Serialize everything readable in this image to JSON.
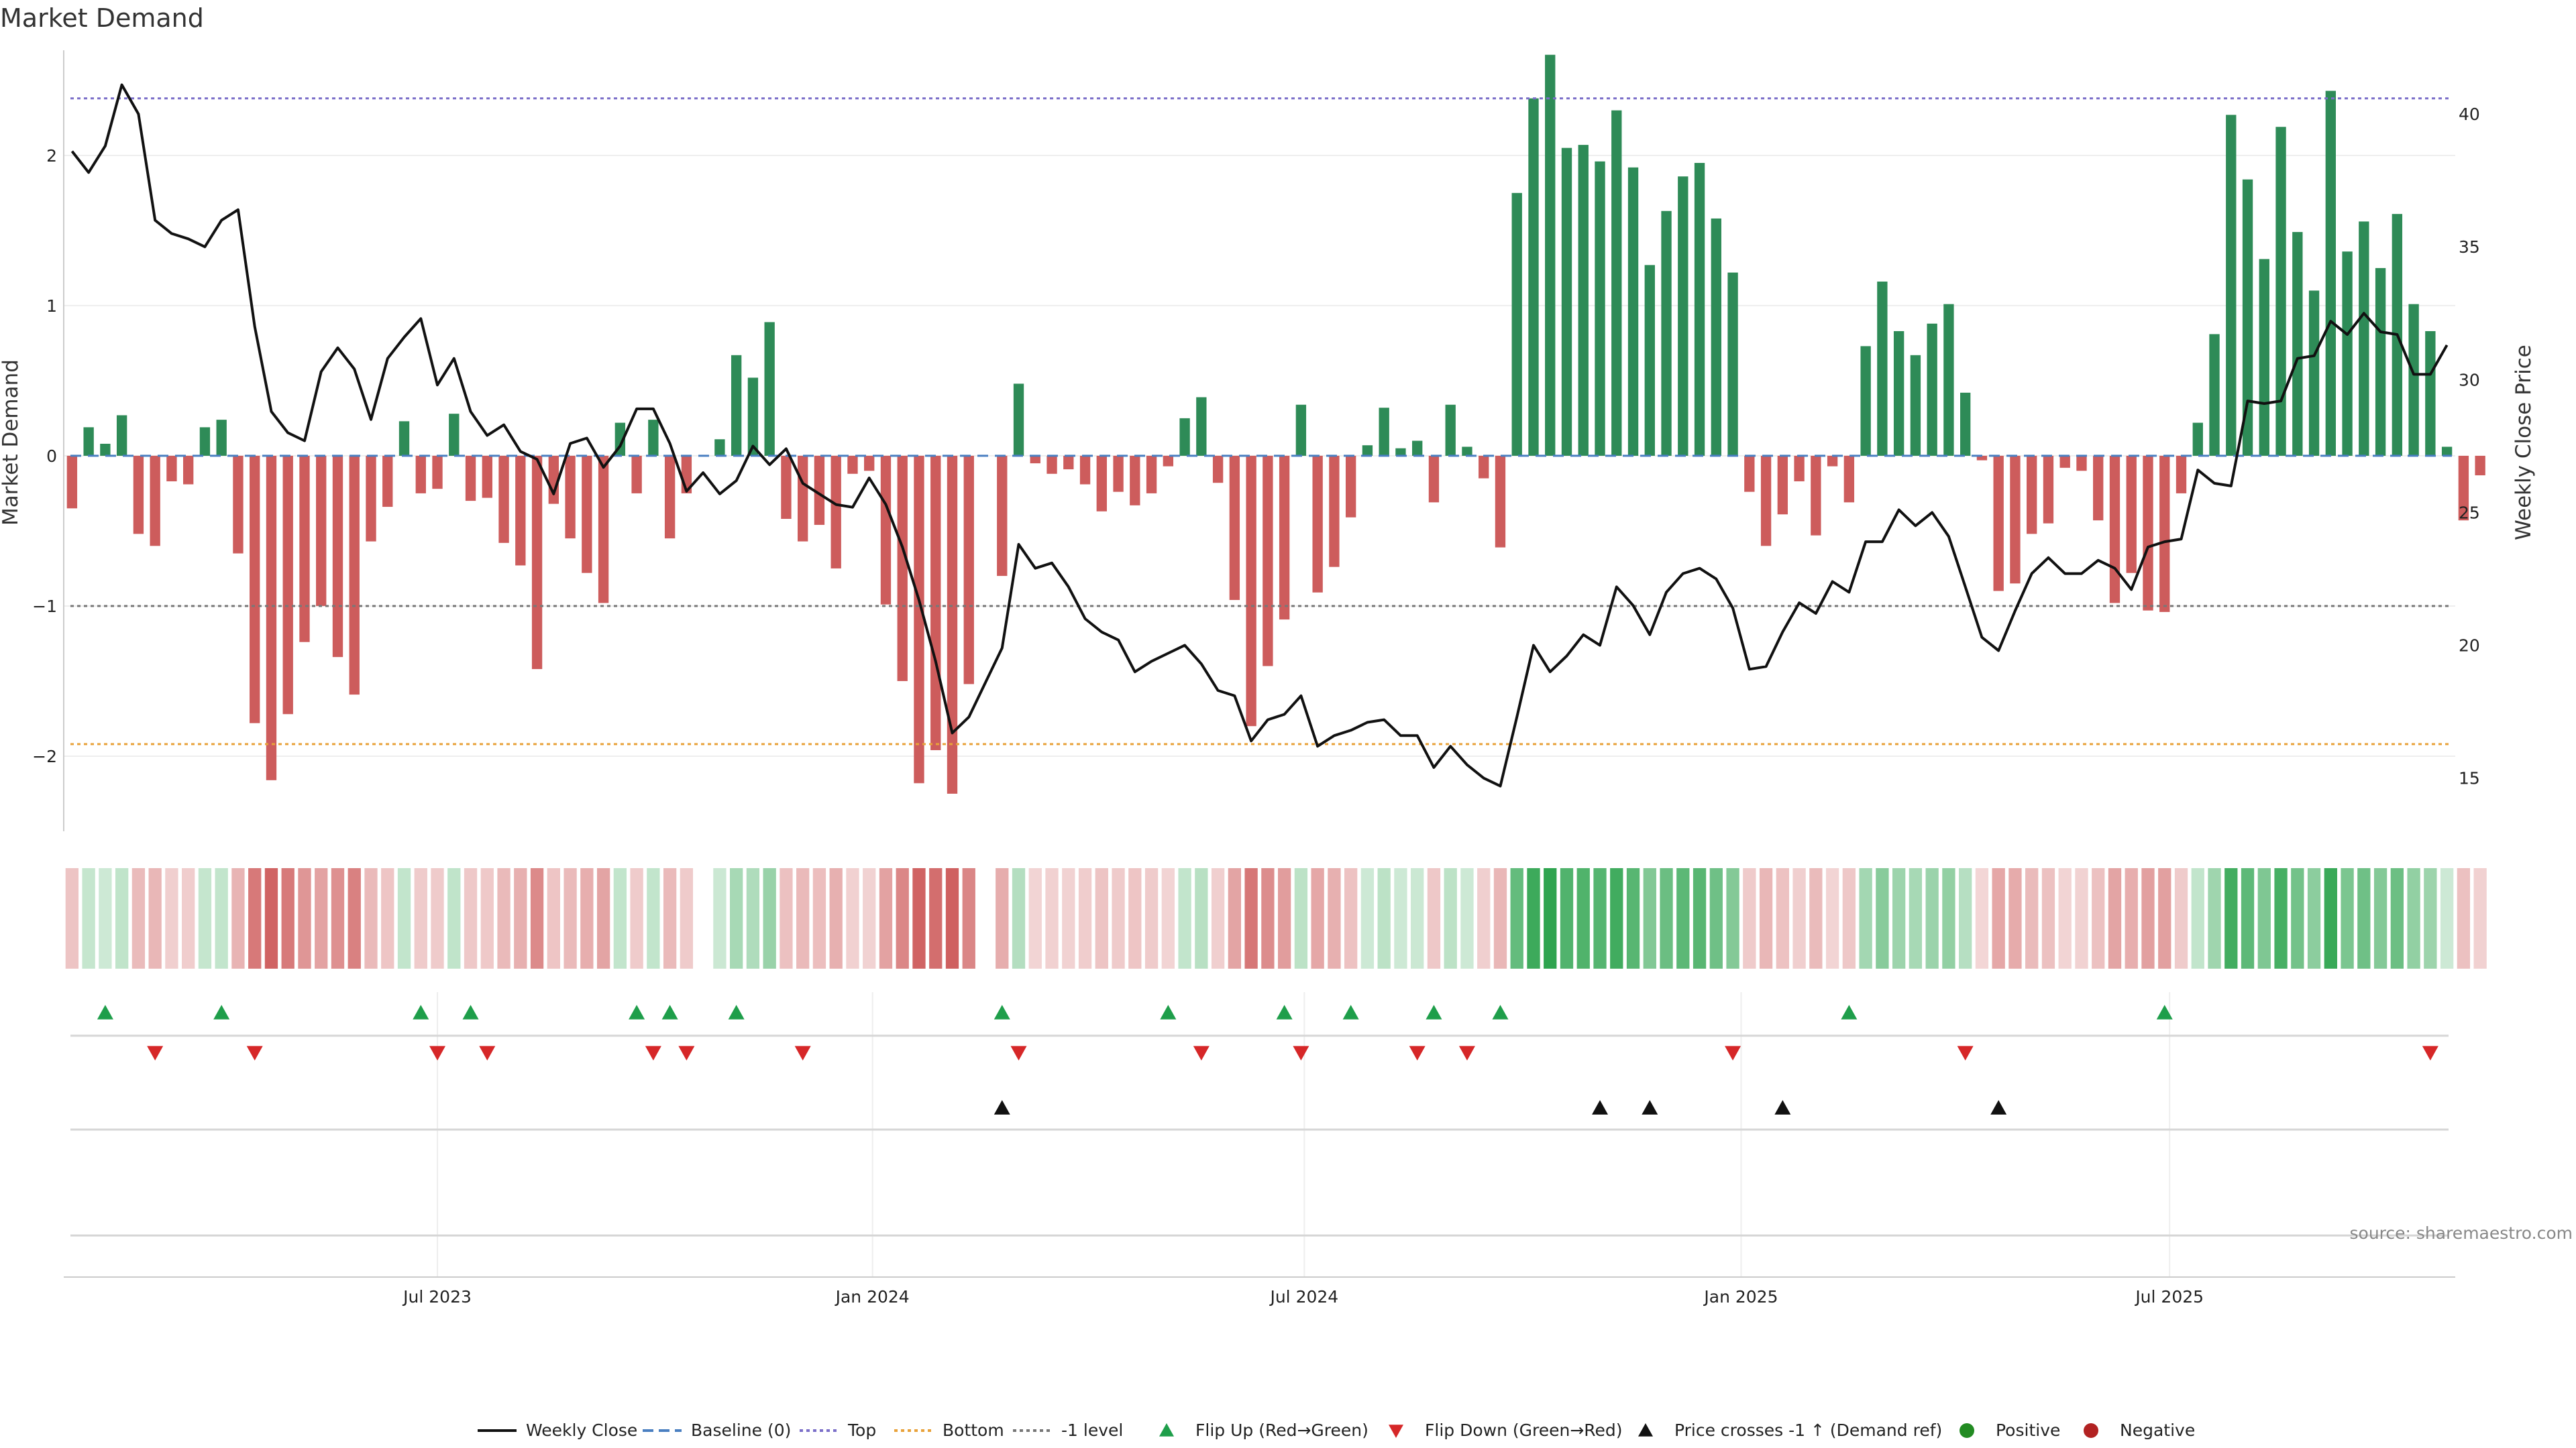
{
  "chart_data": {
    "type": "bar",
    "title": "Market Demand",
    "ylabel": "Market Demand",
    "y2label": "Weekly Close Price",
    "ylim": [
      -2.5,
      2.7
    ],
    "y2lim": [
      13.0,
      42.4
    ],
    "yticks": [
      -2,
      -1,
      0,
      1,
      2
    ],
    "yticklabels": [
      "−2",
      "−1",
      "0",
      "1",
      "2"
    ],
    "y2ticks": [
      15,
      20,
      25,
      30,
      35,
      40
    ],
    "top_level": 2.38,
    "bottom_level": -1.92,
    "minus_one_level": -1,
    "x_range_weeks": [
      -0.5,
      143.5
    ],
    "xticks": [
      {
        "label": "Jul 2023",
        "week": 22
      },
      {
        "label": "Jan 2024",
        "week": 48.2
      },
      {
        "label": "Jul 2024",
        "week": 74.2
      },
      {
        "label": "Jan 2025",
        "week": 100.5
      },
      {
        "label": "Jul 2025",
        "week": 126.3
      }
    ],
    "demand": [
      -0.35,
      0.19,
      0.08,
      0.27,
      -0.52,
      -0.6,
      -0.17,
      -0.19,
      0.19,
      0.24,
      -0.65,
      -1.78,
      -2.16,
      -1.72,
      -1.24,
      -1.0,
      -1.34,
      -1.59,
      -0.57,
      -0.34,
      0.23,
      -0.25,
      -0.22,
      0.28,
      -0.3,
      -0.28,
      -0.58,
      -0.73,
      -1.42,
      -0.32,
      -0.55,
      -0.78,
      -0.98,
      0.22,
      -0.25,
      0.24,
      -0.55,
      -0.25,
      0.0,
      0.11,
      0.67,
      0.52,
      0.89,
      -0.42,
      -0.57,
      -0.46,
      -0.75,
      -0.12,
      -0.1,
      -0.99,
      -1.5,
      -2.18,
      -1.96,
      -2.25,
      -1.52,
      0.0,
      -0.8,
      0.48,
      -0.05,
      -0.12,
      -0.09,
      -0.19,
      -0.37,
      -0.24,
      -0.33,
      -0.25,
      -0.07,
      0.25,
      0.39,
      -0.18,
      -0.96,
      -1.8,
      -1.4,
      -1.09,
      0.34,
      -0.91,
      -0.74,
      -0.41,
      0.07,
      0.32,
      0.05,
      0.1,
      -0.31,
      0.34,
      0.06,
      -0.15,
      -0.61,
      1.75,
      2.38,
      2.67,
      2.05,
      2.07,
      1.96,
      2.3,
      1.92,
      1.27,
      1.63,
      1.86,
      1.95,
      1.58,
      1.22,
      -0.24,
      -0.6,
      -0.39,
      -0.17,
      -0.53,
      -0.07,
      -0.31,
      0.73,
      1.16,
      0.83,
      0.67,
      0.88,
      1.01,
      0.42,
      -0.03,
      -0.9,
      -0.85,
      -0.52,
      -0.45,
      -0.08,
      -0.1,
      -0.43,
      -0.98,
      -0.78,
      -1.03,
      -1.04,
      -0.25,
      0.22,
      0.81,
      2.27,
      1.84,
      1.31,
      2.19,
      1.49,
      1.1,
      2.43,
      1.36,
      1.56,
      1.25,
      1.61,
      1.01,
      0.83,
      0.06,
      -0.43,
      -0.13
    ],
    "weekly_close": [
      38.6,
      37.8,
      38.8,
      41.1,
      40.0,
      36.0,
      35.5,
      35.3,
      35.0,
      36.0,
      36.4,
      32.0,
      28.8,
      28.0,
      27.7,
      30.3,
      31.2,
      30.4,
      28.5,
      30.8,
      31.6,
      32.3,
      29.8,
      30.8,
      28.8,
      27.9,
      28.3,
      27.3,
      27.0,
      25.7,
      27.6,
      27.8,
      26.7,
      27.5,
      28.9,
      28.9,
      27.6,
      25.8,
      26.5,
      25.7,
      26.2,
      27.5,
      26.8,
      27.4,
      26.1,
      25.7,
      25.3,
      25.2,
      26.3,
      25.3,
      23.7,
      21.7,
      19.4,
      16.7,
      17.3,
      18.6,
      19.9,
      23.8,
      22.9,
      23.1,
      22.2,
      21.0,
      20.5,
      20.2,
      19.0,
      19.4,
      19.7,
      20.0,
      19.3,
      18.3,
      18.1,
      16.4,
      17.2,
      17.4,
      18.1,
      16.2,
      16.6,
      16.8,
      17.1,
      17.2,
      16.6,
      16.6,
      15.4,
      16.2,
      15.5,
      15.0,
      14.7,
      17.3,
      20.0,
      19.0,
      19.6,
      20.4,
      20.0,
      22.2,
      21.5,
      20.4,
      22.0,
      22.7,
      22.9,
      22.5,
      21.4,
      19.1,
      19.2,
      20.5,
      21.6,
      21.2,
      22.4,
      22.0,
      23.9,
      23.9,
      25.1,
      24.5,
      25.0,
      24.1,
      22.2,
      20.3,
      19.8,
      21.3,
      22.7,
      23.3,
      22.7,
      22.7,
      23.2,
      22.9,
      22.1,
      23.7,
      23.9,
      24.0,
      26.6,
      26.1,
      26.0,
      29.2,
      29.1,
      29.2,
      30.8,
      30.9,
      32.2,
      31.7,
      32.5,
      31.8,
      31.7,
      30.2,
      30.2,
      31.3
    ],
    "series": [
      {
        "name": "Weekly Close"
      },
      {
        "name": "Baseline (0)"
      },
      {
        "name": "Top"
      },
      {
        "name": "Bottom"
      },
      {
        "name": "-1 level"
      },
      {
        "name": "Flip Up (Red→Green)"
      },
      {
        "name": "Flip Down (Green→Red)"
      },
      {
        "name": "Price crosses -1 ↑ (Demand ref)"
      },
      {
        "name": "Positive"
      },
      {
        "name": "Negative"
      }
    ],
    "flip_up_weeks": [
      2,
      9,
      21,
      24,
      34,
      36,
      40,
      56,
      66,
      73,
      77,
      82,
      86,
      107,
      126
    ],
    "flip_down_weeks": [
      5,
      11,
      22,
      25,
      35,
      37,
      44,
      57,
      68,
      74,
      81,
      84,
      100,
      114,
      142
    ],
    "price_cross_weeks": [
      56,
      92,
      95,
      103,
      116
    ],
    "source": "source: sharemaestro.com",
    "colors": {
      "positive_bar": "#2e8b57",
      "negative_bar": "#cd5c5c",
      "close_line": "#111111",
      "top_line": "#7b6fc9",
      "bottom_line": "#e8a23a",
      "minus_one_line": "#777777",
      "baseline": "#4a7fc1",
      "flip_up": "#1e9e4a",
      "flip_down": "#d62728",
      "price_cross": "#111111",
      "positive_dot": "#228b22",
      "negative_dot": "#b22222"
    }
  }
}
